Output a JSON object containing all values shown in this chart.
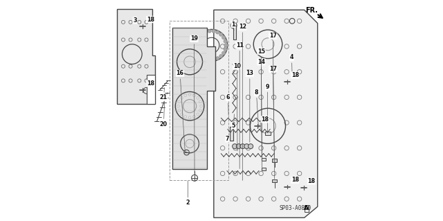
{
  "bg_color": "#ffffff",
  "line_color": "#444444",
  "part_number": "SP03-A0800",
  "fr_label": "FR."
}
